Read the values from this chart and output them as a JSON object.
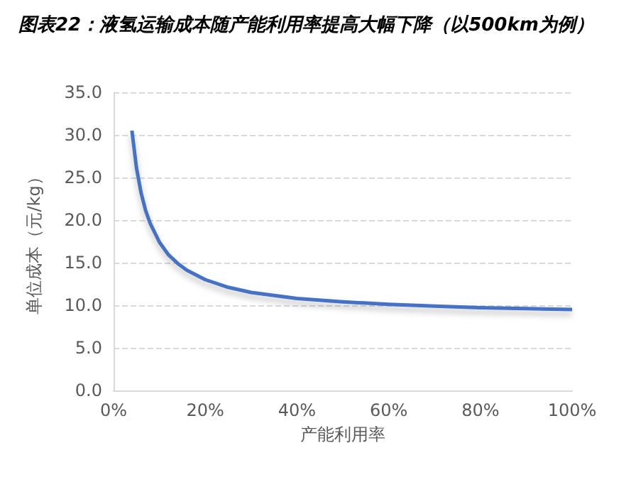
{
  "chart_data": {
    "type": "line",
    "title": "图表22：液氢运输成本随产能利用率提高大幅下降（以500km为例）",
    "xlabel": "产能利用率",
    "ylabel": "单位成本（元/kg）",
    "x": [
      4,
      5,
      6,
      7,
      8,
      10,
      12,
      14,
      16,
      20,
      25,
      30,
      40,
      50,
      60,
      70,
      80,
      90,
      100
    ],
    "series": [
      {
        "color": "#4472c4",
        "values": [
          30.5,
          26.1,
          23.2,
          21.1,
          19.6,
          17.4,
          15.9,
          14.9,
          14.1,
          13.0,
          12.1,
          11.5,
          10.8,
          10.4,
          10.1,
          9.9,
          9.7,
          9.6,
          9.5
        ]
      }
    ],
    "xlim": [
      0,
      100
    ],
    "xticks": [
      {
        "value": 0,
        "label": "0%"
      },
      {
        "value": 20,
        "label": "20%"
      },
      {
        "value": 40,
        "label": "40%"
      },
      {
        "value": 60,
        "label": "60%"
      },
      {
        "value": 80,
        "label": "80%"
      },
      {
        "value": 100,
        "label": "100%"
      }
    ],
    "ylim": [
      0,
      35
    ],
    "yticks": [
      {
        "value": 0,
        "label": "0.0"
      },
      {
        "value": 5,
        "label": "5.0"
      },
      {
        "value": 10,
        "label": "10.0"
      },
      {
        "value": 15,
        "label": "15.0"
      },
      {
        "value": 20,
        "label": "20.0"
      },
      {
        "value": 25,
        "label": "25.0"
      },
      {
        "value": 30,
        "label": "30.0"
      },
      {
        "value": 35,
        "label": "35.0"
      }
    ],
    "grid": "y",
    "marker": "none",
    "line_style": "solid"
  }
}
